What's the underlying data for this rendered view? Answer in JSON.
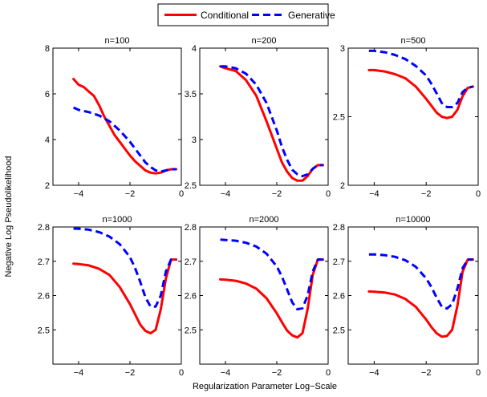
{
  "legend": {
    "placement": "top-center",
    "entries": [
      {
        "name": "Conditional",
        "color": "#ff0000",
        "style": "solid"
      },
      {
        "name": "Generative",
        "color": "#0000ff",
        "style": "dashed"
      }
    ]
  },
  "figure": {
    "ylabel": "Negative Log Pseudolikelihood",
    "xlabel": "Regularization Parameter Log−Scale"
  },
  "chart_data": [
    {
      "type": "line",
      "title": "n=100",
      "xlim": [
        -5,
        0
      ],
      "ylim": [
        2,
        8
      ],
      "xticks": [
        -4,
        -2,
        0
      ],
      "xtick_labels": [
        "−4",
        "−2",
        "0"
      ],
      "yticks": [
        2,
        4,
        6,
        8
      ],
      "ytick_labels": [
        "2",
        "4",
        "6",
        "8"
      ],
      "series": [
        {
          "name": "Conditional",
          "color": "#ff0000",
          "style": "solid",
          "x": [
            -4.2,
            -4.0,
            -3.8,
            -3.6,
            -3.4,
            -3.2,
            -3.0,
            -2.8,
            -2.6,
            -2.4,
            -2.2,
            -2.0,
            -1.8,
            -1.6,
            -1.4,
            -1.2,
            -1.0,
            -0.8,
            -0.6,
            -0.4,
            -0.2
          ],
          "y": [
            6.65,
            6.4,
            6.3,
            6.1,
            5.9,
            5.5,
            5.0,
            4.6,
            4.2,
            3.9,
            3.6,
            3.3,
            3.05,
            2.85,
            2.65,
            2.55,
            2.52,
            2.55,
            2.65,
            2.7,
            2.7
          ]
        },
        {
          "name": "Generative",
          "color": "#0000ff",
          "style": "dashed",
          "x": [
            -4.2,
            -4.0,
            -3.6,
            -3.2,
            -2.8,
            -2.4,
            -2.0,
            -1.8,
            -1.6,
            -1.4,
            -1.2,
            -1.0,
            -0.8,
            -0.6,
            -0.4,
            -0.2
          ],
          "y": [
            5.4,
            5.3,
            5.2,
            5.05,
            4.8,
            4.4,
            3.9,
            3.6,
            3.3,
            3.0,
            2.8,
            2.65,
            2.6,
            2.65,
            2.7,
            2.7
          ]
        }
      ]
    },
    {
      "type": "line",
      "title": "n=200",
      "xlim": [
        -5,
        0
      ],
      "ylim": [
        2.5,
        4
      ],
      "xticks": [
        -4,
        -2,
        0
      ],
      "xtick_labels": [
        "−4",
        "−2",
        "0"
      ],
      "yticks": [
        2.5,
        3,
        3.5,
        4
      ],
      "ytick_labels": [
        "2.5",
        "3",
        "3.5",
        "4"
      ],
      "series": [
        {
          "name": "Conditional",
          "color": "#ff0000",
          "style": "solid",
          "x": [
            -4.2,
            -4.0,
            -3.6,
            -3.2,
            -2.8,
            -2.4,
            -2.0,
            -1.8,
            -1.6,
            -1.4,
            -1.2,
            -1.0,
            -0.8,
            -0.6,
            -0.4,
            -0.2
          ],
          "y": [
            3.8,
            3.78,
            3.75,
            3.65,
            3.48,
            3.2,
            2.9,
            2.75,
            2.65,
            2.58,
            2.55,
            2.55,
            2.6,
            2.68,
            2.72,
            2.72
          ]
        },
        {
          "name": "Generative",
          "color": "#0000ff",
          "style": "dashed",
          "x": [
            -4.2,
            -4.0,
            -3.6,
            -3.2,
            -2.8,
            -2.4,
            -2.0,
            -1.8,
            -1.6,
            -1.4,
            -1.2,
            -1.0,
            -0.8,
            -0.6,
            -0.4,
            -0.2
          ],
          "y": [
            3.8,
            3.8,
            3.78,
            3.72,
            3.6,
            3.4,
            3.1,
            2.92,
            2.78,
            2.67,
            2.62,
            2.6,
            2.62,
            2.68,
            2.72,
            2.72
          ]
        }
      ]
    },
    {
      "type": "line",
      "title": "n=500",
      "xlim": [
        -5,
        0
      ],
      "ylim": [
        2,
        3
      ],
      "xticks": [
        -4,
        -2,
        0
      ],
      "xtick_labels": [
        "−4",
        "−2",
        "0"
      ],
      "yticks": [
        2,
        2.5,
        3
      ],
      "ytick_labels": [
        "2",
        "2.5",
        "3"
      ],
      "series": [
        {
          "name": "Conditional",
          "color": "#ff0000",
          "style": "solid",
          "x": [
            -4.2,
            -4.0,
            -3.6,
            -3.2,
            -2.8,
            -2.4,
            -2.0,
            -1.8,
            -1.6,
            -1.4,
            -1.2,
            -1.0,
            -0.8,
            -0.6,
            -0.4,
            -0.2
          ],
          "y": [
            2.84,
            2.84,
            2.83,
            2.81,
            2.78,
            2.72,
            2.63,
            2.58,
            2.53,
            2.5,
            2.49,
            2.5,
            2.55,
            2.65,
            2.71,
            2.72
          ]
        },
        {
          "name": "Generative",
          "color": "#0000ff",
          "style": "dashed",
          "x": [
            -4.2,
            -4.0,
            -3.6,
            -3.2,
            -2.8,
            -2.4,
            -2.0,
            -1.8,
            -1.6,
            -1.4,
            -1.2,
            -1.0,
            -0.8,
            -0.6,
            -0.4,
            -0.2
          ],
          "y": [
            2.98,
            2.98,
            2.97,
            2.95,
            2.92,
            2.87,
            2.8,
            2.74,
            2.67,
            2.6,
            2.57,
            2.57,
            2.6,
            2.68,
            2.71,
            2.72
          ]
        }
      ]
    },
    {
      "type": "line",
      "title": "n=1000",
      "xlim": [
        -5,
        0
      ],
      "ylim": [
        2.4,
        2.8
      ],
      "xticks": [
        -4,
        -2,
        0
      ],
      "xtick_labels": [
        "−4",
        "−2",
        "0"
      ],
      "yticks": [
        2.5,
        2.6,
        2.7,
        2.8
      ],
      "ytick_labels": [
        "2.5",
        "2.6",
        "2.7",
        "2.8"
      ],
      "series": [
        {
          "name": "Conditional",
          "color": "#ff0000",
          "style": "solid",
          "x": [
            -4.2,
            -4.0,
            -3.6,
            -3.2,
            -2.8,
            -2.4,
            -2.0,
            -1.8,
            -1.6,
            -1.4,
            -1.2,
            -1.0,
            -0.8,
            -0.6,
            -0.4,
            -0.2
          ],
          "y": [
            2.693,
            2.692,
            2.688,
            2.678,
            2.66,
            2.625,
            2.575,
            2.545,
            2.515,
            2.497,
            2.49,
            2.5,
            2.56,
            2.65,
            2.705,
            2.705
          ]
        },
        {
          "name": "Generative",
          "color": "#0000ff",
          "style": "dashed",
          "x": [
            -4.2,
            -4.0,
            -3.6,
            -3.2,
            -2.8,
            -2.4,
            -2.0,
            -1.8,
            -1.6,
            -1.4,
            -1.2,
            -1.0,
            -0.8,
            -0.6,
            -0.4,
            -0.2
          ],
          "y": [
            2.795,
            2.795,
            2.792,
            2.785,
            2.772,
            2.75,
            2.712,
            2.68,
            2.64,
            2.595,
            2.568,
            2.568,
            2.6,
            2.67,
            2.705,
            2.705
          ]
        }
      ]
    },
    {
      "type": "line",
      "title": "n=2000",
      "xlim": [
        -5,
        0
      ],
      "ylim": [
        2.4,
        2.8
      ],
      "xticks": [
        -4,
        -2,
        0
      ],
      "xtick_labels": [
        "−4",
        "−2",
        "0"
      ],
      "yticks": [
        2.5,
        2.6,
        2.7,
        2.8
      ],
      "ytick_labels": [
        "2.5",
        "2.6",
        "2.7",
        "2.8"
      ],
      "series": [
        {
          "name": "Conditional",
          "color": "#ff0000",
          "style": "solid",
          "x": [
            -4.2,
            -4.0,
            -3.6,
            -3.2,
            -2.8,
            -2.4,
            -2.0,
            -1.8,
            -1.6,
            -1.4,
            -1.2,
            -1.0,
            -0.8,
            -0.6,
            -0.4,
            -0.2
          ],
          "y": [
            2.647,
            2.646,
            2.643,
            2.635,
            2.62,
            2.592,
            2.548,
            2.522,
            2.498,
            2.484,
            2.478,
            2.49,
            2.56,
            2.66,
            2.705,
            2.705
          ]
        },
        {
          "name": "Generative",
          "color": "#0000ff",
          "style": "dashed",
          "x": [
            -4.2,
            -4.0,
            -3.6,
            -3.2,
            -2.8,
            -2.4,
            -2.0,
            -1.8,
            -1.6,
            -1.4,
            -1.2,
            -1.0,
            -0.8,
            -0.6,
            -0.4,
            -0.2
          ],
          "y": [
            2.763,
            2.762,
            2.76,
            2.754,
            2.743,
            2.722,
            2.685,
            2.655,
            2.618,
            2.58,
            2.56,
            2.563,
            2.6,
            2.67,
            2.705,
            2.705
          ]
        }
      ]
    },
    {
      "type": "line",
      "title": "n=10000",
      "xlim": [
        -5,
        0
      ],
      "ylim": [
        2.4,
        2.8
      ],
      "xticks": [
        -4,
        -2,
        0
      ],
      "xtick_labels": [
        "−4",
        "−2",
        "0"
      ],
      "yticks": [
        2.5,
        2.6,
        2.7,
        2.8
      ],
      "ytick_labels": [
        "2.5",
        "2.6",
        "2.7",
        "2.8"
      ],
      "series": [
        {
          "name": "Conditional",
          "color": "#ff0000",
          "style": "solid",
          "x": [
            -4.2,
            -4.0,
            -3.6,
            -3.2,
            -2.8,
            -2.4,
            -2.0,
            -1.8,
            -1.6,
            -1.4,
            -1.2,
            -1.0,
            -0.8,
            -0.6,
            -0.4,
            -0.2
          ],
          "y": [
            2.612,
            2.611,
            2.609,
            2.603,
            2.59,
            2.567,
            2.53,
            2.508,
            2.49,
            2.48,
            2.482,
            2.5,
            2.57,
            2.67,
            2.705,
            2.705
          ]
        },
        {
          "name": "Generative",
          "color": "#0000ff",
          "style": "dashed",
          "x": [
            -4.2,
            -4.0,
            -3.6,
            -3.2,
            -2.8,
            -2.4,
            -2.0,
            -1.8,
            -1.6,
            -1.4,
            -1.2,
            -1.0,
            -0.8,
            -0.6,
            -0.4,
            -0.2
          ],
          "y": [
            2.72,
            2.72,
            2.718,
            2.713,
            2.703,
            2.684,
            2.65,
            2.625,
            2.594,
            2.568,
            2.562,
            2.575,
            2.62,
            2.68,
            2.705,
            2.705
          ]
        }
      ]
    }
  ]
}
